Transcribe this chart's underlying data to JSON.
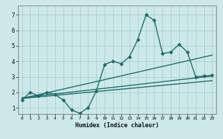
{
  "title": "",
  "xlabel": "Humidex (Indice chaleur)",
  "bg_color": "#cce8e8",
  "line_color": "#1a6b6b",
  "grid_color": "#aacfcf",
  "x_ticks": [
    0,
    1,
    2,
    3,
    4,
    5,
    6,
    7,
    8,
    9,
    10,
    11,
    12,
    13,
    14,
    15,
    16,
    17,
    18,
    19,
    20,
    21,
    22,
    23
  ],
  "y_ticks": [
    1,
    2,
    3,
    4,
    5,
    6,
    7
  ],
  "xlim": [
    -0.5,
    23.5
  ],
  "ylim": [
    0.6,
    7.6
  ],
  "series": [
    {
      "x": [
        0,
        1,
        2,
        3,
        4,
        5,
        6,
        7,
        8,
        9,
        10,
        11,
        12,
        13,
        14,
        15,
        16,
        17,
        18,
        19,
        20,
        21,
        22,
        23
      ],
      "y": [
        1.5,
        2.0,
        1.75,
        2.0,
        1.85,
        1.5,
        0.85,
        0.65,
        1.0,
        2.1,
        3.8,
        4.0,
        3.85,
        4.3,
        5.4,
        7.0,
        6.65,
        4.5,
        4.6,
        5.1,
        4.6,
        3.0,
        3.05,
        3.1
      ],
      "marker": "D",
      "markersize": 2.5,
      "linewidth": 1.0
    },
    {
      "x": [
        0,
        23
      ],
      "y": [
        1.6,
        4.4
      ],
      "marker": "",
      "markersize": 0,
      "linewidth": 1.0
    },
    {
      "x": [
        0,
        23
      ],
      "y": [
        1.65,
        3.05
      ],
      "marker": "",
      "markersize": 0,
      "linewidth": 1.0
    },
    {
      "x": [
        0,
        23
      ],
      "y": [
        1.6,
        2.75
      ],
      "marker": "",
      "markersize": 0,
      "linewidth": 1.0
    }
  ]
}
